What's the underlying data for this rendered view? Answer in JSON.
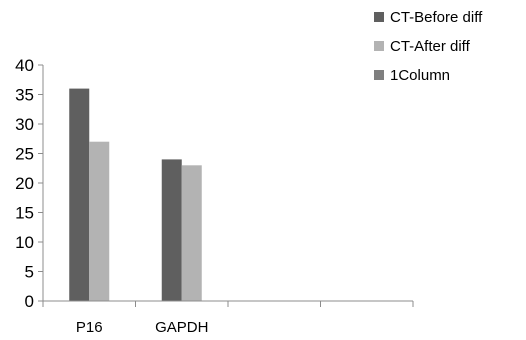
{
  "chart_data": {
    "type": "bar",
    "categories": [
      "P16",
      "GAPDH",
      "",
      ""
    ],
    "series": [
      {
        "name": "CT-Before diff",
        "values": [
          36,
          24,
          null,
          null
        ],
        "color": "#5f5f5f"
      },
      {
        "name": "CT-After diff",
        "values": [
          27,
          23,
          null,
          null
        ],
        "color": "#b3b3b3"
      },
      {
        "name": "1Column",
        "values": [
          null,
          null,
          null,
          null
        ],
        "color": "#7f7f7f"
      }
    ],
    "ylim": [
      0,
      40
    ],
    "yticks": [
      0,
      5,
      10,
      15,
      20,
      25,
      30,
      35,
      40
    ],
    "grid": false,
    "legend_position": "top-right",
    "title": "",
    "xlabel": "",
    "ylabel": ""
  }
}
